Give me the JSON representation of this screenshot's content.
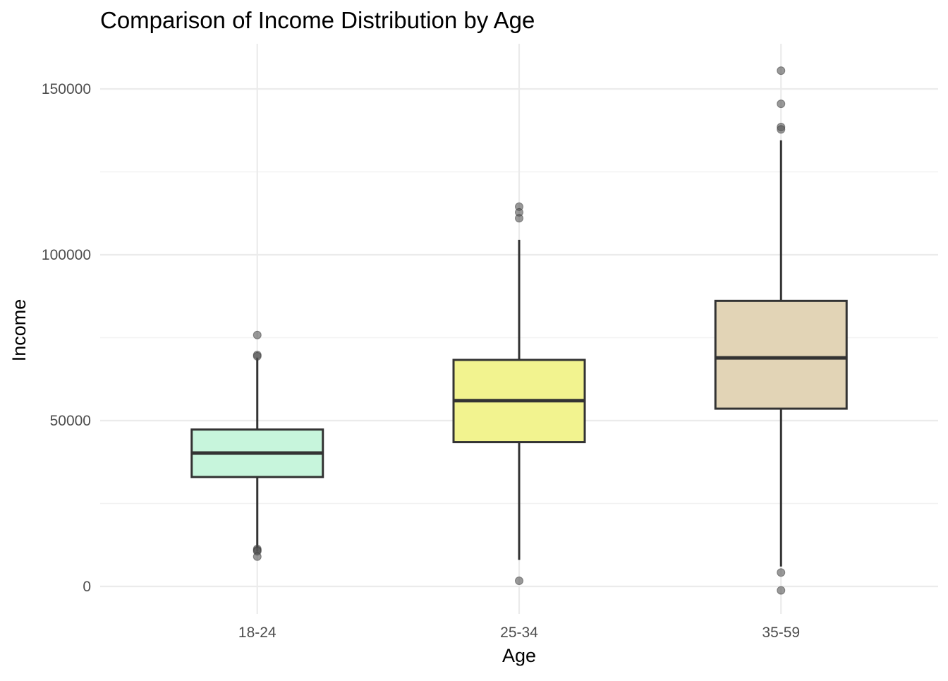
{
  "chart_data": {
    "type": "box",
    "title": "Comparison of Income Distribution by Age",
    "xlabel": "Age",
    "ylabel": "Income",
    "ylim": [
      -8000,
      162000
    ],
    "y_ticks": [
      0,
      50000,
      100000,
      150000
    ],
    "y_tick_labels": [
      "0",
      "50000",
      "100000",
      "150000"
    ],
    "grid": true,
    "legend": "none",
    "categories": [
      "18-24",
      "25-34",
      "35-59"
    ],
    "boxes": [
      {
        "category": "18-24",
        "color": "#c7f5dc",
        "whisker_low": 10500,
        "q1": 33000,
        "median": 40200,
        "q3": 47300,
        "whisker_high": 69000,
        "outliers": [
          75800,
          69800,
          69400,
          11300,
          10900,
          10600,
          9000
        ]
      },
      {
        "category": "25-34",
        "color": "#f2f38f",
        "whisker_low": 8000,
        "q1": 43500,
        "median": 56000,
        "q3": 68300,
        "whisker_high": 104500,
        "outliers": [
          114500,
          112800,
          111000,
          1700
        ]
      },
      {
        "category": "35-59",
        "color": "#e2d4b6",
        "whisker_low": 6000,
        "q1": 53600,
        "median": 68900,
        "q3": 86100,
        "whisker_high": 134500,
        "outliers": [
          155500,
          145500,
          138500,
          137800,
          4200,
          -1200
        ]
      }
    ]
  }
}
